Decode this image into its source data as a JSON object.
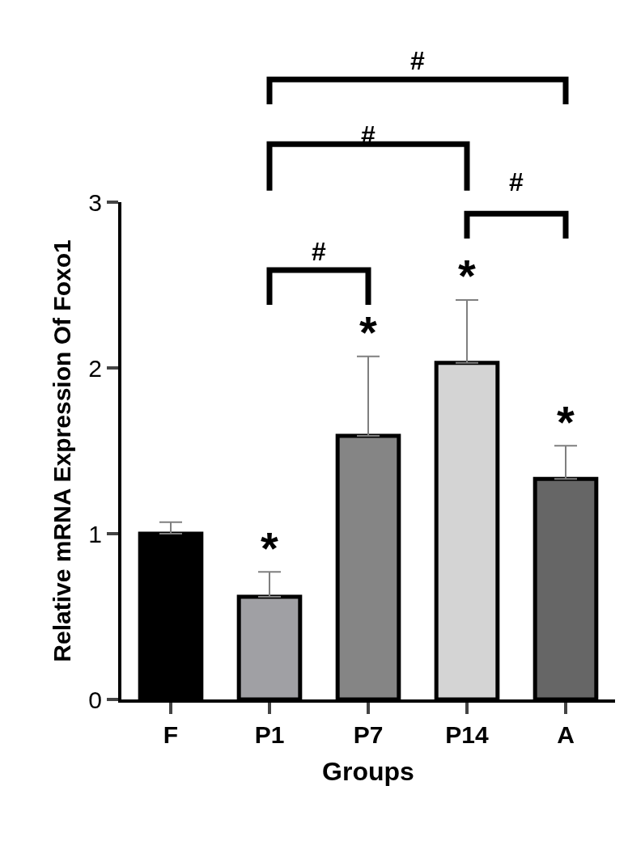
{
  "chart_data": {
    "type": "bar",
    "xlabel": "Groups",
    "ylabel": "Relative mRNA Expression Of Foxo1",
    "categories": [
      "F",
      "P1",
      "P7",
      "P14",
      "A"
    ],
    "values": [
      1.0,
      0.62,
      1.59,
      2.03,
      1.33
    ],
    "colors": [
      "#000000",
      "#a0a0a4",
      "#858585",
      "#d4d4d4",
      "#666666"
    ],
    "errors": [
      [
        1.0,
        1.07
      ],
      [
        0.62,
        0.77
      ],
      [
        1.59,
        2.07
      ],
      [
        2.03,
        2.41
      ],
      [
        1.33,
        1.53
      ]
    ],
    "ylim": [
      0,
      3
    ],
    "yticks": [
      0,
      1,
      2,
      3
    ],
    "annotations": [
      "*",
      "*",
      "*",
      "*",
      "#",
      "#",
      "#",
      "#"
    ]
  }
}
